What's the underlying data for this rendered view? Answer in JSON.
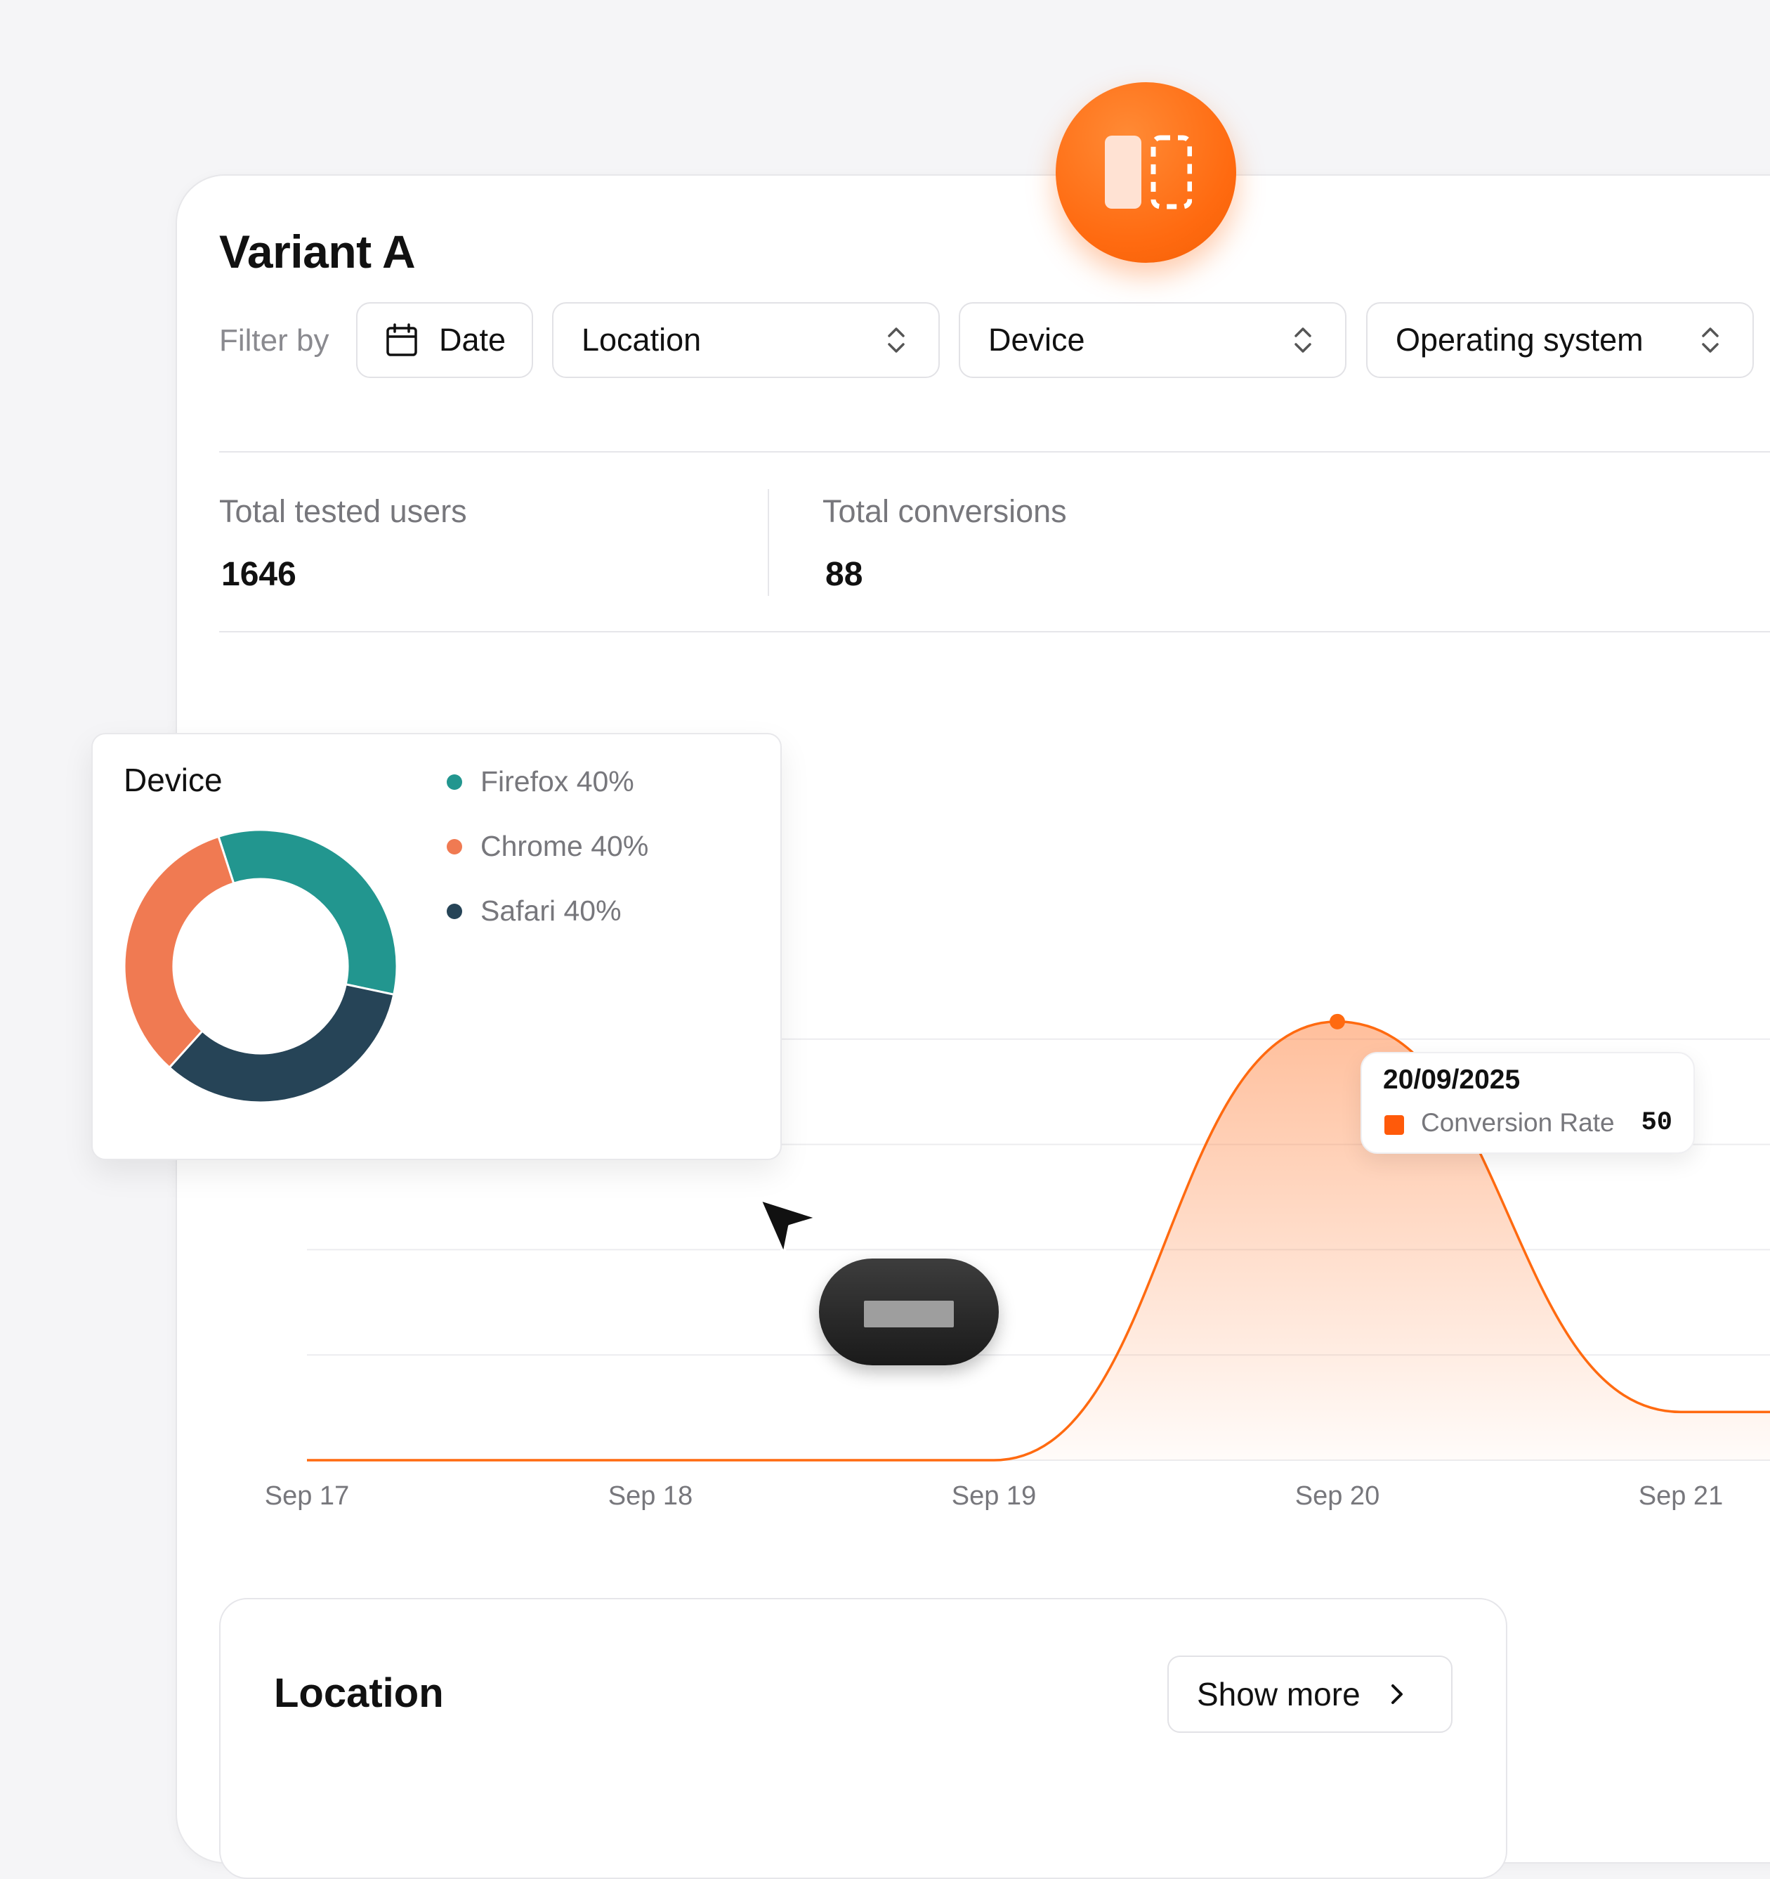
{
  "header": {
    "title": "Variant A"
  },
  "filters": {
    "label": "Filter by",
    "date": "Date",
    "location": "Location",
    "device": "Device",
    "os": "Operating system"
  },
  "stats": {
    "users_label": "Total tested users",
    "users_value": "1646",
    "conversions_label": "Total conversions",
    "conversions_value": "88"
  },
  "icons": {
    "fab": "split-view-icon",
    "date": "calendar-icon",
    "select": "chevron-up-down-icon",
    "show_more": "chevron-right-icon",
    "cursor": "pointer-cursor-icon"
  },
  "colors": {
    "accent": "#ff6a10",
    "firefox": "#22968f",
    "chrome": "#f07a52",
    "safari": "#264457"
  },
  "chart_data": {
    "type": "area",
    "categories": [
      "Sep 17",
      "Sep 18",
      "Sep 19",
      "Sep 20",
      "Sep 21"
    ],
    "series": [
      {
        "name": "Conversion Rate",
        "values": [
          0,
          0,
          0,
          50,
          5.5
        ]
      }
    ],
    "ylim": [
      0,
      60
    ],
    "grid": true,
    "color": "#ff6a10"
  },
  "tooltip": {
    "date": "20/09/2025",
    "series": "Conversion Rate",
    "value": "50"
  },
  "device_panel": {
    "title": "Device",
    "chart_data": {
      "type": "pie",
      "labels": [
        "Firefox",
        "Chrome",
        "Safari"
      ],
      "values": [
        40,
        40,
        40
      ],
      "legend": [
        "Firefox 40%",
        "Chrome 40%",
        "Safari 40%"
      ]
    }
  },
  "location_panel": {
    "title": "Location",
    "show_more": "Show more"
  }
}
